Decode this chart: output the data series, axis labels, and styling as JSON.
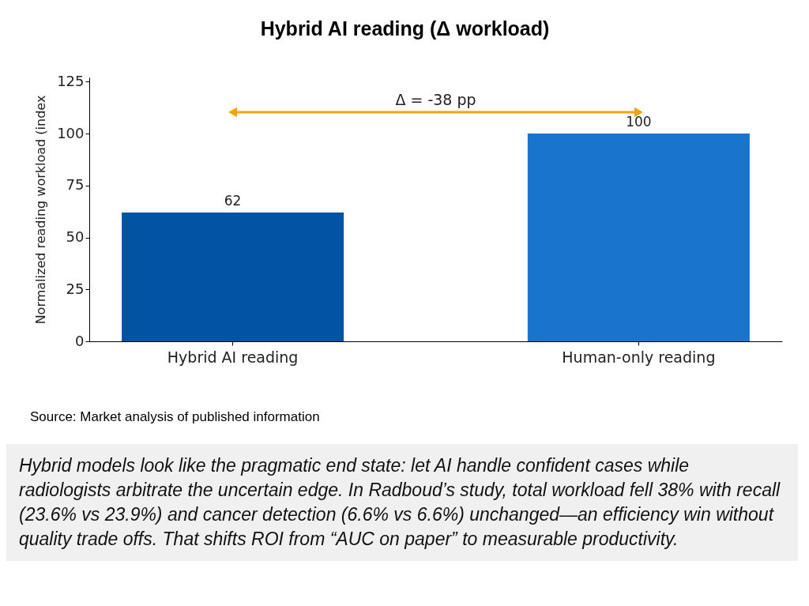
{
  "chart_data": {
    "type": "bar",
    "title": "Hybrid AI reading (Δ workload)",
    "ylabel": "Normalized reading workload (index",
    "categories": [
      "Hybrid AI reading",
      "Human-only reading"
    ],
    "values": [
      62,
      100
    ],
    "colors": [
      "#0353a4",
      "#1874cd"
    ],
    "ylim": [
      0,
      127
    ],
    "yticks": [
      0,
      25,
      50,
      75,
      100,
      125
    ],
    "grid": false,
    "legend": false,
    "data_labels": true,
    "annotations": [
      "Δ = -38 pp",
      "Source: Market analysis of published information",
      "Hybrid models look like the pragmatic end state: let AI handle confident cases while radiologists arbitrate the uncertain edge. In Radboud’s study, total workload fell 38% with recall (23.6% vs 23.9%) and cancer detection (6.6% vs 6.6%) unchanged—an efficiency win without quality trade offs. That shifts ROI from “AUC on paper” to measurable productivity."
    ]
  }
}
